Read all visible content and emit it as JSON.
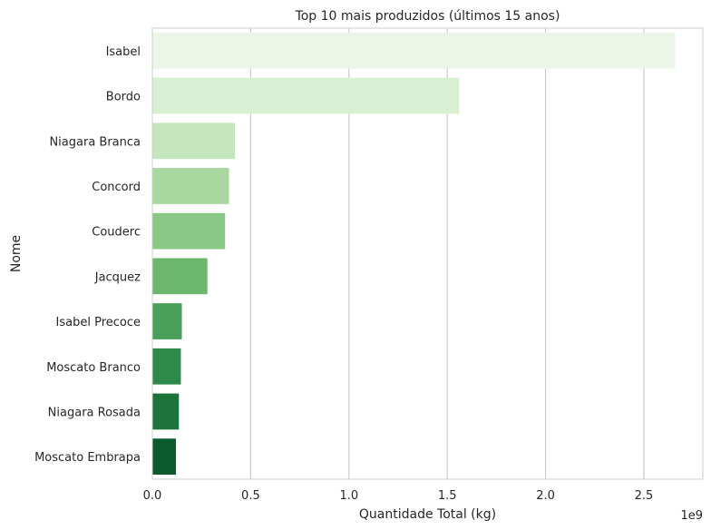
{
  "chart_data": {
    "type": "bar",
    "orientation": "horizontal",
    "title": "Top 10 mais produzidos (últimos 15 anos)",
    "xlabel": "Quantidade Total (kg)",
    "ylabel": "Nome",
    "x_offset_label": "1e9",
    "xlim": [
      0,
      2.8
    ],
    "x_ticks": [
      0.0,
      0.5,
      1.0,
      1.5,
      2.0,
      2.5
    ],
    "x_tick_labels": [
      "0.0",
      "0.5",
      "1.0",
      "1.5",
      "2.0",
      "2.5"
    ],
    "grid": true,
    "categories": [
      "Isabel",
      "Bordo",
      "Niagara Branca",
      "Concord",
      "Couderc",
      "Jacquez",
      "Isabel Precoce",
      "Moscato Branco",
      "Niagara Rosada",
      "Moscato Embrapa"
    ],
    "values": [
      2.66,
      1.56,
      0.42,
      0.39,
      0.37,
      0.28,
      0.15,
      0.145,
      0.135,
      0.12
    ],
    "colors": [
      "#ebf6e9",
      "#d9efd3",
      "#c4e6bd",
      "#a8d8a0",
      "#8ac885",
      "#6cb66e",
      "#4aa05a",
      "#2e8a4a",
      "#1d733c",
      "#0b5b2d"
    ]
  }
}
